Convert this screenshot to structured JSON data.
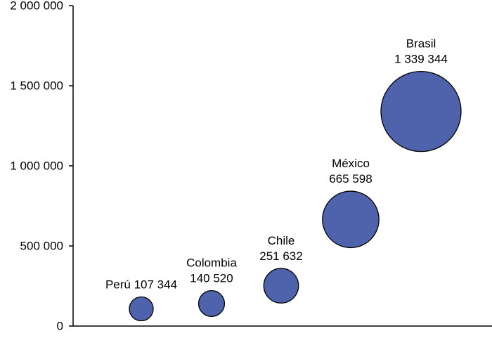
{
  "chart_data": {
    "type": "scatter",
    "subtype": "bubble",
    "title": "",
    "xlabel": "",
    "ylabel": "",
    "ylim": [
      0,
      2000000
    ],
    "y_ticks": [
      {
        "value": 0,
        "label": "0"
      },
      {
        "value": 500000,
        "label": "500 000"
      },
      {
        "value": 1000000,
        "label": "1 000 000"
      },
      {
        "value": 1500000,
        "label": "1 500 000"
      },
      {
        "value": 2000000,
        "label": "2 000 000"
      }
    ],
    "x_ticks_visible": false,
    "grid": false,
    "legend": "none",
    "bubble_color": "#4f63ad",
    "bubble_outline": "#000000",
    "points": [
      {
        "name": "Perú",
        "value": 107344,
        "display": "107 344",
        "label_lines": [
          "Perú 107 344"
        ]
      },
      {
        "name": "Colombia",
        "value": 140520,
        "display": "140 520",
        "label_lines": [
          "Colombia",
          "140 520"
        ]
      },
      {
        "name": "Chile",
        "value": 251632,
        "display": "251 632",
        "label_lines": [
          "Chile",
          "251 632"
        ]
      },
      {
        "name": "México",
        "value": 665598,
        "display": "665 598",
        "label_lines": [
          "México",
          "665 598"
        ]
      },
      {
        "name": "Brasil",
        "value": 1339344,
        "display": "1 339 344",
        "label_lines": [
          "Brasil",
          "1 339 344"
        ]
      }
    ]
  }
}
